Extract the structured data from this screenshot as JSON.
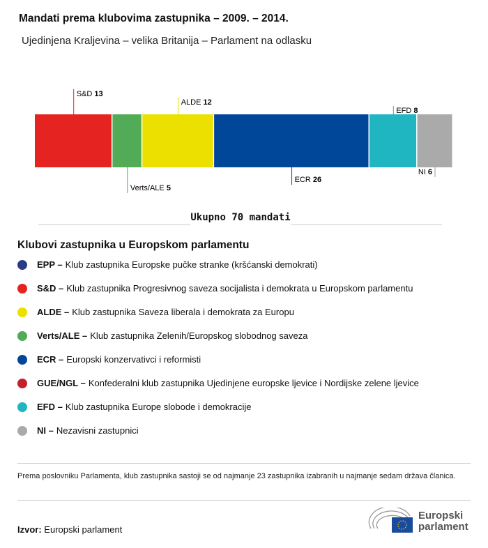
{
  "title": "Mandati prema klubovima zastupnika – 2009. – 2014.",
  "subtitle": "Ujedinjena Kraljevina – velika Britanija – Parlament na odlasku",
  "chart_data": {
    "type": "bar",
    "orientation": "horizontal-stacked",
    "categories": [
      "S&D",
      "Verts/ALE",
      "ALDE",
      "ECR",
      "EFD",
      "NI"
    ],
    "values": [
      13,
      5,
      12,
      26,
      8,
      6
    ],
    "colors": [
      "#e52421",
      "#52ab56",
      "#ebe000",
      "#00479a",
      "#1fb5c1",
      "#aaaaaa"
    ],
    "total_label": "Ukupno 70 mandati"
  },
  "legend": {
    "title": "Klubovi zastupnika u Europskom parlamentu",
    "items": [
      {
        "abbr": "EPP –",
        "text": "Klub zastupnika Europske pučke stranke (kršćanski demokrati)",
        "color": "#2a3a87"
      },
      {
        "abbr": "S&D –",
        "text": "Klub zastupnika Progresivnog saveza socijalista i demokrata u Europskom parlamentu",
        "color": "#e52421"
      },
      {
        "abbr": "ALDE –",
        "text": "Klub zastupnika Saveza liberala i demokrata za Europu",
        "color": "#ebe000"
      },
      {
        "abbr": "Verts/ALE –",
        "text": "Klub zastupnika Zelenih/Europskog slobodnog saveza",
        "color": "#52ab56"
      },
      {
        "abbr": "ECR –",
        "text": "Europski konzervativci i reformisti",
        "color": "#00479a"
      },
      {
        "abbr": "GUE/NGL –",
        "text": "Konfederalni klub zastupnika Ujedinjene europske ljevice i Nordijske zelene ljevice",
        "color": "#c8202a"
      },
      {
        "abbr": "EFD –",
        "text": "Klub zastupnika Europe slobode i demokracije",
        "color": "#1fb5c1"
      },
      {
        "abbr": "NI –",
        "text": "Nezavisni zastupnici",
        "color": "#aaaaaa"
      }
    ]
  },
  "note": "Prema poslovniku Parlamenta, klub zastupnika sastoji se od najmanje 23 zastupnika izabranih u najmanje sedam država članica.",
  "source": {
    "label": "Izvor:",
    "value": "Europski parlament"
  },
  "logo": {
    "line1": "Europski",
    "line2": "parlament"
  }
}
